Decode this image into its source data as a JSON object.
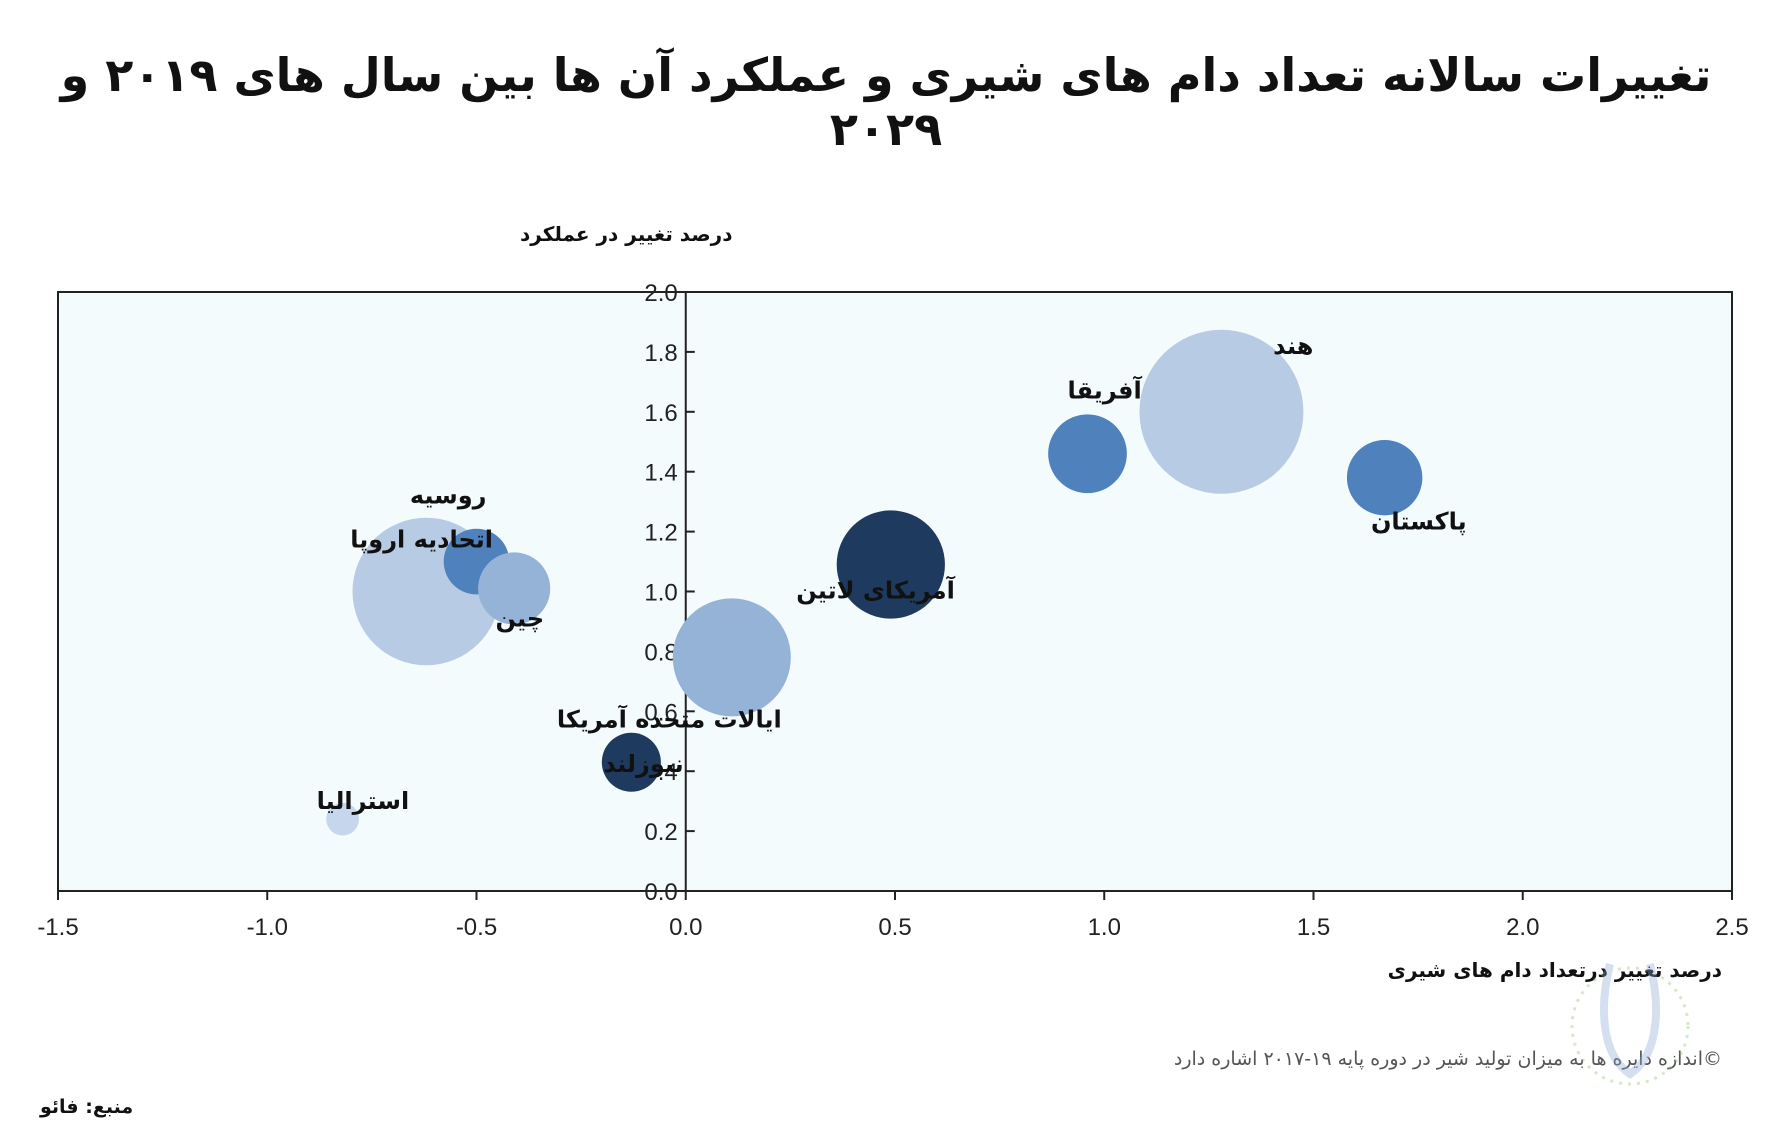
{
  "chart_data": {
    "type": "scatter",
    "title": "تغییرات سالانه تعداد دام های شیری و عملکرد آن ها بین سال های ۲۰۱۹ و ۲۰۲۹",
    "xlabel": "درصد تغییر درتعداد دام های شیری",
    "ylabel": "درصد تغییر در عملکرد",
    "xlim": [
      -1.5,
      2.5
    ],
    "ylim": [
      0.0,
      2.0
    ],
    "x_ticks": [
      "-1.5",
      "-1.0",
      "-0.5",
      "0.0",
      "0.5",
      "1.0",
      "1.5",
      "2.0",
      "2.5"
    ],
    "y_ticks": [
      "0.0",
      "0.2",
      "0.4",
      "0.6",
      "0.8",
      "1.0",
      "1.2",
      "1.4",
      "1.6",
      "1.8",
      "2.0"
    ],
    "grid": false,
    "legend": "none",
    "note": "©اندازه دایره ها به میزان تولید شیر در دوره پایه ۱۹-۲۰۱۷ اشاره دارد",
    "points": [
      {
        "label": "هند",
        "x": 1.28,
        "y": 1.6,
        "size": 1.0,
        "color": "#b8cbe4"
      },
      {
        "label": "آفریقا",
        "x": 0.96,
        "y": 1.46,
        "size": 0.48,
        "color": "#4f81bd"
      },
      {
        "label": "پاکستان",
        "x": 1.67,
        "y": 1.38,
        "size": 0.46,
        "color": "#4f81bd"
      },
      {
        "label": "آمریکای لاتین",
        "x": 0.49,
        "y": 1.09,
        "size": 0.66,
        "color": "#1f3a5f"
      },
      {
        "label": "ایالات متحده آمریکا",
        "x": 0.11,
        "y": 0.78,
        "size": 0.72,
        "color": "#95b3d7"
      },
      {
        "label": "اتحادیه اروپا",
        "x": -0.62,
        "y": 1.0,
        "size": 0.9,
        "color": "#b8cbe4"
      },
      {
        "label": "روسیه",
        "x": -0.5,
        "y": 1.1,
        "size": 0.4,
        "color": "#4f81bd"
      },
      {
        "label": "چین",
        "x": -0.41,
        "y": 1.01,
        "size": 0.44,
        "color": "#95b3d7"
      },
      {
        "label": "نیوزلند",
        "x": -0.13,
        "y": 0.43,
        "size": 0.36,
        "color": "#1f3a5f"
      },
      {
        "label": "استرالیا",
        "x": -0.82,
        "y": 0.24,
        "size": 0.2,
        "color": "#c6d6ec"
      }
    ]
  },
  "source": "منبع: فائو",
  "colors": {
    "plot_background": "#f4fbfd",
    "axis": "#222222"
  }
}
